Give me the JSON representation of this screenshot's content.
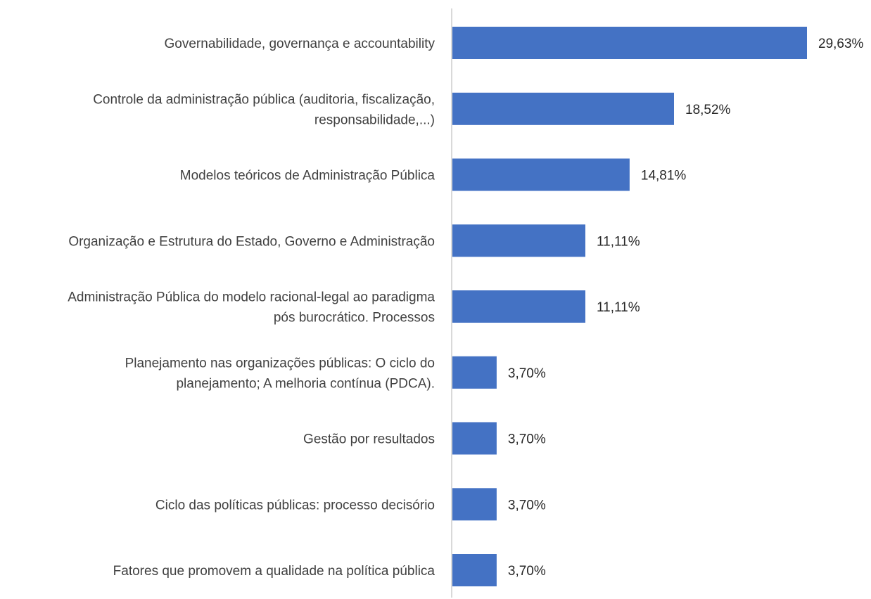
{
  "chart_data": {
    "type": "bar",
    "orientation": "horizontal",
    "categories": [
      [
        "Governabilidade, governança e accountability"
      ],
      [
        "Controle da administração pública (auditoria, fiscalização,",
        "responsabilidade,...)"
      ],
      [
        "Modelos teóricos de Administração Pública"
      ],
      [
        "Organização e Estrutura do Estado, Governo e Administração"
      ],
      [
        "Administração Pública do modelo racional-legal ao paradigma",
        "pós burocrático. Processos"
      ],
      [
        "Planejamento nas organizações públicas: O ciclo do",
        "planejamento; A melhoria contínua (PDCA)."
      ],
      [
        "Gestão por resultados"
      ],
      [
        "Ciclo das políticas públicas: processo decisório"
      ],
      [
        "Fatores que promovem a qualidade na política pública"
      ]
    ],
    "values": [
      29.63,
      18.52,
      14.81,
      11.11,
      11.11,
      3.7,
      3.7,
      3.7,
      3.7
    ],
    "data_labels": [
      "29,63%",
      "18,52%",
      "14,81%",
      "11,11%",
      "11,11%",
      "3,70%",
      "3,70%",
      "3,70%",
      "3,70%"
    ],
    "xlim": [
      0,
      29.63
    ],
    "grid": false,
    "legend": "none",
    "bar_color": "#4472c4",
    "axis_color": "#d9d9d9"
  }
}
